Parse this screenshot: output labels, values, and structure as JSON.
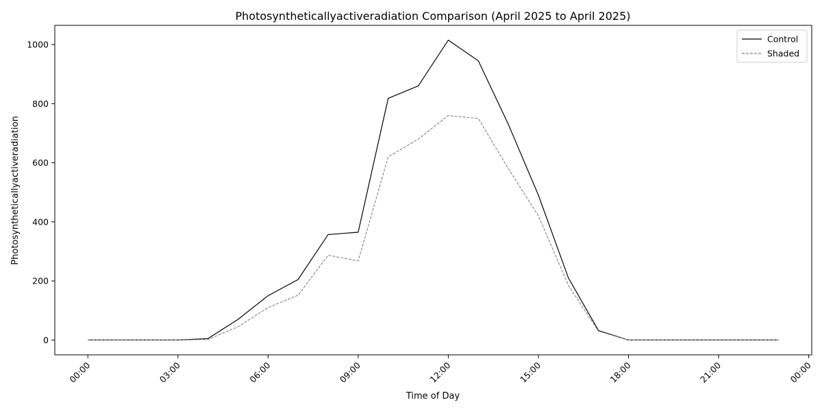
{
  "chart_data": {
    "type": "line",
    "title": "Photosyntheticallyactiveradiation Comparison (April 2025 to April 2025)",
    "xlabel": "Time of Day",
    "ylabel": "Photosyntheticallyactiveradiation",
    "x_tick_labels": [
      "00:00",
      "03:00",
      "06:00",
      "09:00",
      "12:00",
      "15:00",
      "18:00",
      "21:00",
      "00:00"
    ],
    "x_tick_hours": [
      0,
      3,
      6,
      9,
      12,
      15,
      18,
      21,
      24
    ],
    "xlim_hours": [
      -1.1,
      24.1
    ],
    "y_ticks": [
      0,
      200,
      400,
      600,
      800,
      1000
    ],
    "ylim": [
      -50,
      1065
    ],
    "grid": false,
    "legend_position": "top-right",
    "x_hours": [
      0,
      1,
      2,
      3,
      4,
      5,
      6,
      7,
      8,
      9,
      10,
      11,
      12,
      13,
      14,
      15,
      16,
      17,
      18,
      19,
      20,
      21,
      22,
      23
    ],
    "series": [
      {
        "name": "Control",
        "color": "#000000",
        "dash": "solid",
        "values": [
          0,
          0,
          0,
          0,
          5,
          70,
          150,
          205,
          357,
          365,
          818,
          860,
          1015,
          945,
          730,
          490,
          210,
          32,
          0,
          0,
          0,
          0,
          0,
          0
        ]
      },
      {
        "name": "Shaded",
        "color": "#808080",
        "dash": "dashed",
        "values": [
          0,
          0,
          0,
          0,
          2,
          45,
          110,
          152,
          287,
          268,
          620,
          680,
          760,
          750,
          580,
          420,
          185,
          30,
          0,
          0,
          0,
          0,
          0,
          0
        ]
      }
    ]
  }
}
